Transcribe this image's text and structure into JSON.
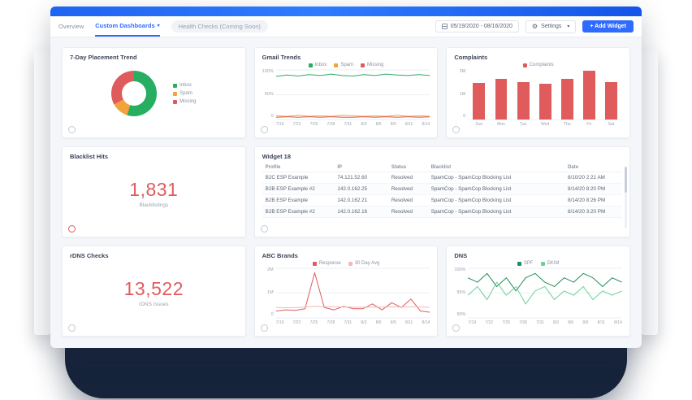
{
  "colors": {
    "accent": "#2f6bff",
    "green": "#27ae60",
    "orange": "#f2a33c",
    "red": "#e05c5c",
    "pink": "#f3b8b8",
    "dark_green": "#1e8e5a",
    "light_green": "#6fcf97",
    "navy": "#16233b"
  },
  "toolbar": {
    "tabs": [
      {
        "label": "Overview"
      },
      {
        "label": "Custom Dashboards"
      },
      {
        "label": "Health Checks (Coming Soon)"
      }
    ],
    "date_range": "05/19/2020 - 08/16/2020",
    "settings_label": "Settings",
    "add_widget_label": "+ Add Widget"
  },
  "widgets": {
    "placement": {
      "title": "7-Day Placement Trend",
      "chart_data": {
        "type": "pie",
        "slices": [
          {
            "label": "Inbox",
            "value": 55,
            "color": "#27ae60"
          },
          {
            "label": "Spam",
            "value": 12,
            "color": "#f2a33c"
          },
          {
            "label": "Missing",
            "value": 33,
            "color": "#e05c5c"
          }
        ]
      }
    },
    "gmail": {
      "title": "Gmail Trends",
      "chart_data": {
        "type": "line",
        "x": [
          "7/19",
          "7/22",
          "7/25",
          "7/28",
          "7/31",
          "8/3",
          "8/6",
          "8/9",
          "8/11",
          "8/14"
        ],
        "yticks": [
          "100%",
          "50%",
          "0"
        ],
        "ylim": [
          0,
          100
        ],
        "series": [
          {
            "name": "Inbox",
            "color": "#27ae60",
            "values": [
              88,
              91,
              89,
              92,
              90,
              93,
              90,
              89,
              92,
              90,
              93,
              91,
              90,
              92,
              90
            ]
          },
          {
            "name": "Spam",
            "color": "#f2a33c",
            "values": [
              6,
              5,
              7,
              5,
              6,
              5,
              7,
              6,
              5,
              6,
              5,
              7,
              5,
              6,
              5
            ]
          },
          {
            "name": "Missing",
            "color": "#e05c5c",
            "values": [
              3,
              4,
              3,
              4,
              3,
              4,
              3,
              3,
              4,
              3,
              4,
              3,
              4,
              3,
              4
            ]
          }
        ]
      }
    },
    "complaints": {
      "title": "Complaints",
      "chart_data": {
        "type": "bar",
        "legend": [
          {
            "label": "Complaints",
            "color": "#e05c5c"
          }
        ],
        "categories": [
          "Sun",
          "Mon",
          "Tue",
          "Wed",
          "Thu",
          "Fri",
          "Sat"
        ],
        "values": [
          1.45,
          1.6,
          1.5,
          1.42,
          1.62,
          1.95,
          1.5
        ],
        "yticks": [
          "2M",
          "1M",
          "0"
        ],
        "ylim": [
          0,
          2
        ]
      }
    },
    "blacklist": {
      "title": "Blacklist Hits",
      "value": "1,831",
      "label": "Blacklistings"
    },
    "widget18": {
      "title": "Widget 18",
      "columns": [
        "Profile",
        "IP",
        "Status",
        "Blacklist",
        "Date"
      ],
      "rows": [
        [
          "B2C ESP Example",
          "74.121.52.60",
          "Resolved",
          "SpamCop - SpamCop Blocking List",
          "8/10/20 2:21 AM"
        ],
        [
          "B2B ESP Example #2",
          "142.0.162.25",
          "Resolved",
          "SpamCop - SpamCop Blocking List",
          "8/14/20 8:20 PM"
        ],
        [
          "B2B ESP Example",
          "142.0.162.21",
          "Resolved",
          "SpamCop - SpamCop Blocking List",
          "8/14/20 8:26 PM"
        ],
        [
          "B2B ESP Example #2",
          "142.0.162.16",
          "Resolved",
          "SpamCop - SpamCop Blocking List",
          "8/14/20 3:20 PM"
        ]
      ]
    },
    "rdns": {
      "title": "rDNS Checks",
      "value": "13,522",
      "label": "rDNS Issues"
    },
    "abc": {
      "title": "ABC Brands",
      "chart_data": {
        "type": "line",
        "x": [
          "7/19",
          "7/22",
          "7/25",
          "7/28",
          "7/31",
          "8/3",
          "8/6",
          "8/9",
          "8/11",
          "8/14"
        ],
        "yticks": [
          "2M",
          "1M",
          "0"
        ],
        "ylim": [
          0,
          2
        ],
        "series": [
          {
            "name": "Response",
            "color": "#e05c5c",
            "values": [
              0.25,
              0.3,
              0.28,
              0.35,
              1.85,
              0.4,
              0.3,
              0.45,
              0.35,
              0.35,
              0.55,
              0.3,
              0.6,
              0.4,
              0.75,
              0.25,
              0.2
            ]
          },
          {
            "name": "30 Day Avg",
            "color": "#f3b8b8",
            "values": [
              0.4,
              0.39,
              0.4,
              0.42,
              0.45,
              0.44,
              0.43,
              0.42,
              0.41,
              0.41,
              0.42,
              0.41,
              0.43,
              0.42,
              0.43,
              0.42,
              0.41
            ]
          }
        ]
      }
    },
    "dns": {
      "title": "DNS",
      "chart_data": {
        "type": "line",
        "x": [
          "7/19",
          "7/22",
          "7/25",
          "7/28",
          "7/31",
          "8/3",
          "8/6",
          "8/9",
          "8/11",
          "8/14"
        ],
        "yticks": [
          "100%",
          "95%",
          "90%"
        ],
        "ylim": [
          90,
          101
        ],
        "series": [
          {
            "name": "SPF",
            "color": "#1e8e5a",
            "values": [
              99,
              98,
              100,
              97,
              99,
              96,
              99,
              100,
              98,
              97,
              99,
              98,
              100,
              99,
              97,
              99,
              98
            ]
          },
          {
            "name": "DKIM",
            "color": "#6fcf97",
            "values": [
              95,
              97,
              94,
              98,
              95,
              97,
              93,
              96,
              97,
              94,
              96,
              95,
              97,
              94,
              96,
              95,
              96
            ]
          }
        ]
      }
    }
  }
}
